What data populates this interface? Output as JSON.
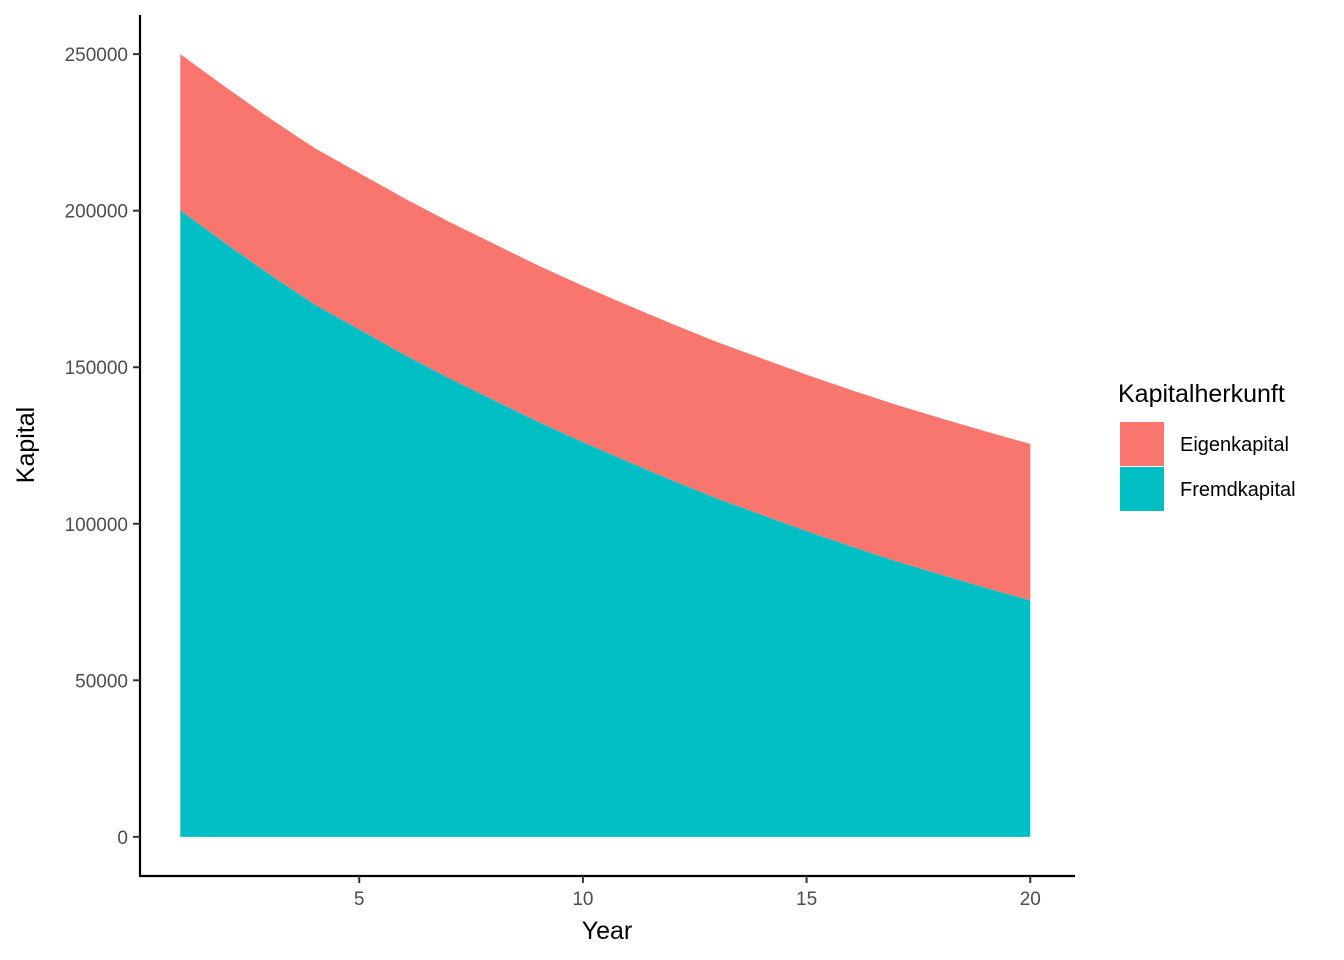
{
  "chart_data": {
    "type": "area",
    "stacked": true,
    "title": "",
    "xlabel": "Year",
    "ylabel": "Kapital",
    "xlim": [
      0.1,
      21
    ],
    "ylim": [
      -12500,
      262500
    ],
    "x_ticks": [
      5,
      10,
      15,
      20
    ],
    "y_ticks": [
      0,
      50000,
      100000,
      150000,
      200000,
      250000
    ],
    "grid": false,
    "legend": {
      "title": "Kapitalherkunft",
      "position": "right"
    },
    "x": [
      1,
      2,
      3,
      4,
      5,
      6,
      7,
      8,
      9,
      10,
      11,
      12,
      13,
      14,
      15,
      16,
      17,
      18,
      19,
      20
    ],
    "series": [
      {
        "name": "Eigenkapital",
        "color": "#F8766D",
        "values": [
          50000,
          50000,
          50000,
          50000,
          50000,
          50000,
          50000,
          50000,
          50000,
          50000,
          50000,
          50000,
          50000,
          50000,
          50000,
          50000,
          50000,
          50000,
          50000,
          50000
        ]
      },
      {
        "name": "Fremdkapital",
        "color": "#00BFC4",
        "values": [
          200000,
          189600,
          179500,
          170000,
          162000,
          154000,
          146500,
          139500,
          132500,
          126000,
          119800,
          113800,
          108000,
          102800,
          97600,
          92700,
          88000,
          83700,
          79500,
          75500
        ]
      }
    ]
  }
}
